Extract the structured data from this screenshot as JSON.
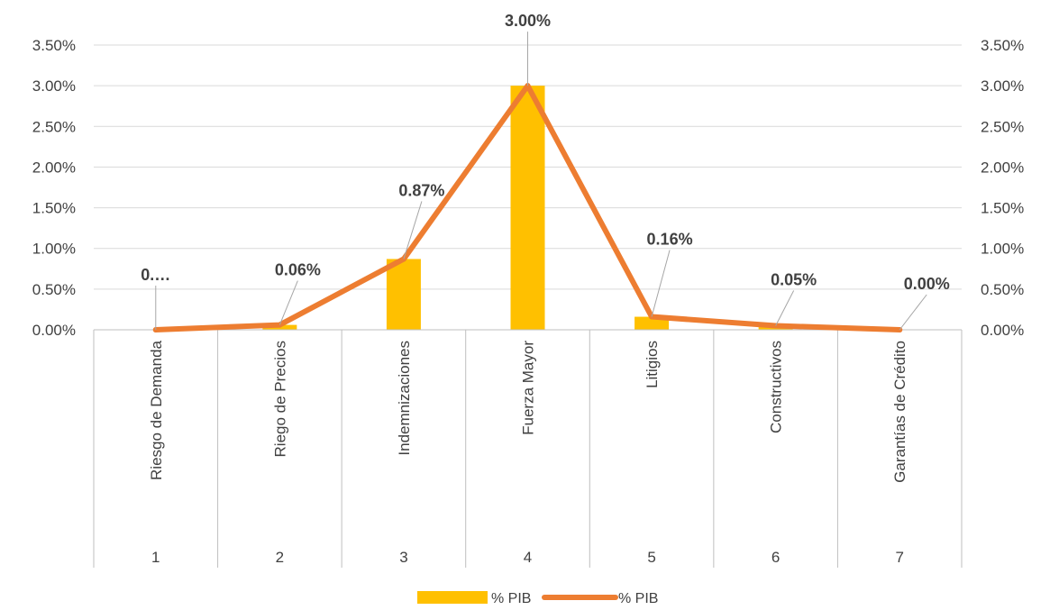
{
  "chart_data": {
    "type": "bar+line",
    "x": [
      "1",
      "2",
      "3",
      "4",
      "5",
      "6",
      "7"
    ],
    "categories": [
      "Riesgo de Demanda",
      "Riego de Precios",
      "Indemnizaciones",
      "Fuerza Mayor",
      "Litigios",
      "Constructivos",
      "Garantías de Crédito"
    ],
    "series": [
      {
        "name": "% PIB",
        "kind": "bar",
        "color": "#FFC000",
        "values": [
          0.0,
          0.06,
          0.87,
          3.0,
          0.16,
          0.05,
          0.0
        ]
      },
      {
        "name": "% PIB",
        "kind": "line",
        "color": "#ED7D31",
        "values": [
          0.0,
          0.06,
          0.87,
          3.0,
          0.16,
          0.05,
          0.0
        ]
      }
    ],
    "data_labels": [
      "0.…",
      "0.06%",
      "0.87%",
      "3.00%",
      "0.16%",
      "0.05%",
      "0.00%"
    ],
    "y_ticks": [
      "0.00%",
      "0.50%",
      "1.00%",
      "1.50%",
      "2.00%",
      "2.50%",
      "3.00%",
      "3.50%"
    ],
    "ylim": [
      0,
      3.5
    ],
    "y2_ticks": [
      "0.00%",
      "0.50%",
      "1.00%",
      "1.50%",
      "2.00%",
      "2.50%",
      "3.00%",
      "3.50%"
    ],
    "grid": true,
    "legend": "bottom"
  }
}
